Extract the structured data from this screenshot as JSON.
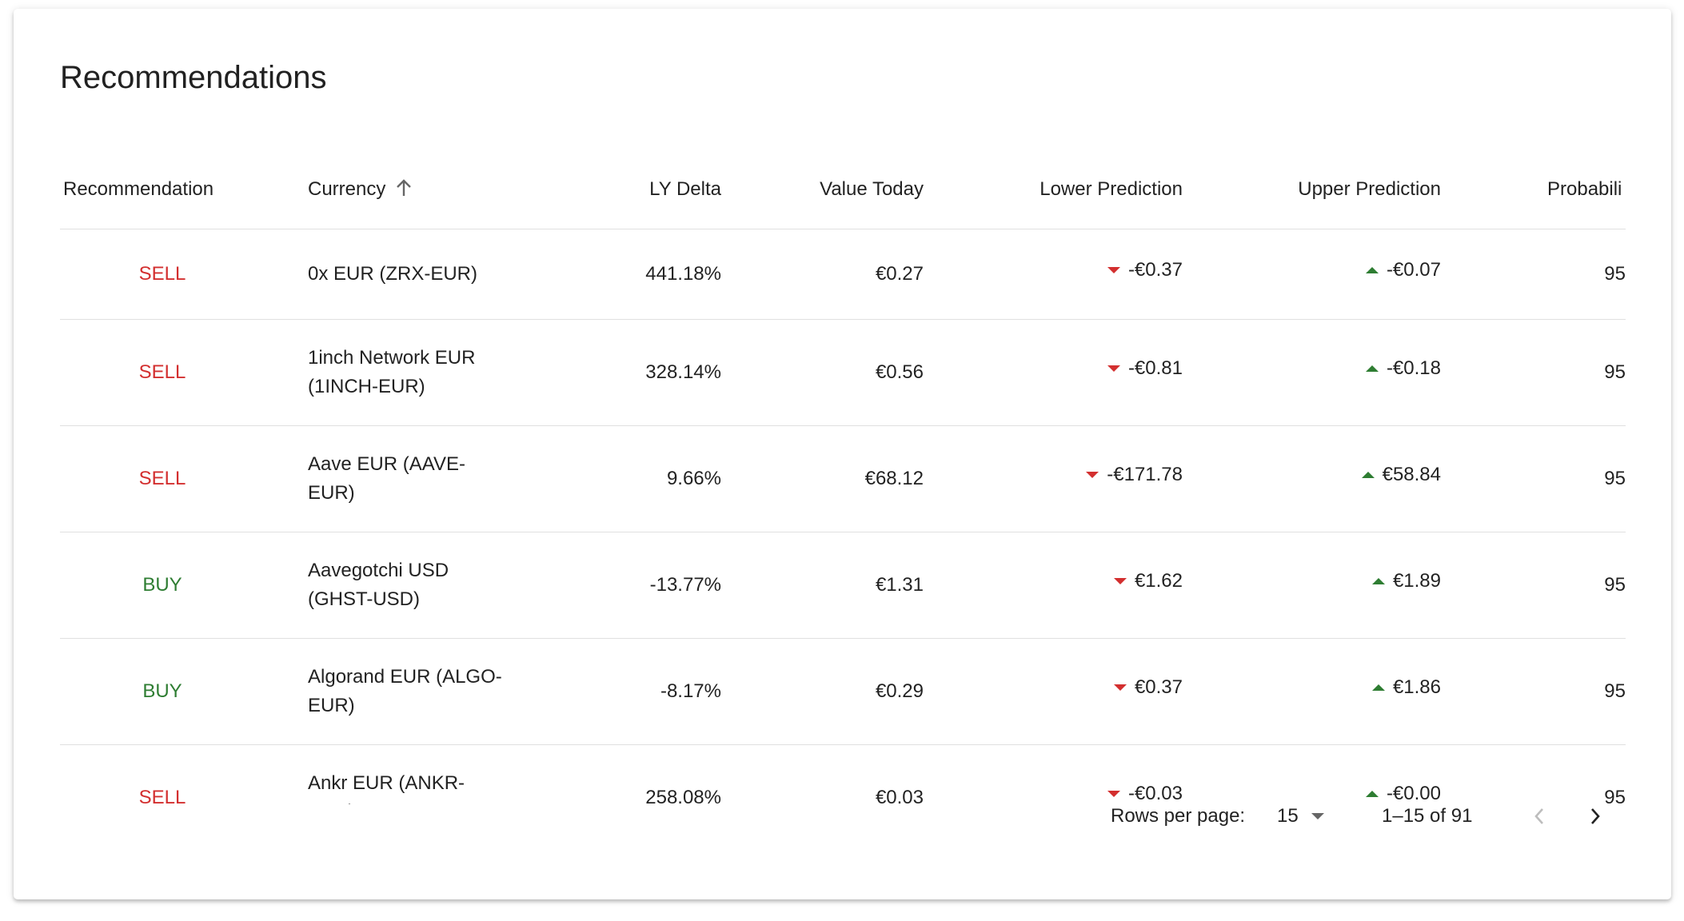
{
  "header": {
    "title": "Recommendations"
  },
  "table": {
    "columns": [
      "Recommendation",
      "Currency",
      "LY Delta",
      "Value Today",
      "Lower Prediction",
      "Upper Prediction",
      "Probabili"
    ],
    "rows": [
      {
        "recommendation": {
          "label": "SELL",
          "color": "#d32f2f"
        },
        "currency": "0x EUR (ZRX-EUR)",
        "ly_delta": "441.18%",
        "value_today": "€0.27",
        "lower_prediction": "-€0.37",
        "upper_prediction": "-€0.07",
        "probability": "95"
      },
      {
        "recommendation": {
          "label": "SELL",
          "color": "#d32f2f"
        },
        "currency": "1inch Network EUR (1INCH-EUR)",
        "ly_delta": "328.14%",
        "value_today": "€0.56",
        "lower_prediction": "-€0.81",
        "upper_prediction": "-€0.18",
        "probability": "95"
      },
      {
        "recommendation": {
          "label": "SELL",
          "color": "#d32f2f"
        },
        "currency": "Aave EUR (AAVE-EUR)",
        "ly_delta": "9.66%",
        "value_today": "€68.12",
        "lower_prediction": "-€171.78",
        "upper_prediction": "€58.84",
        "probability": "95"
      },
      {
        "recommendation": {
          "label": "BUY",
          "color": "#2e7d32"
        },
        "currency": "Aavegotchi USD (GHST-USD)",
        "ly_delta": "-13.77%",
        "value_today": "€1.31",
        "lower_prediction": "€1.62",
        "upper_prediction": "€1.89",
        "probability": "95"
      },
      {
        "recommendation": {
          "label": "BUY",
          "color": "#2e7d32"
        },
        "currency": "Algorand EUR (ALGO-EUR)",
        "ly_delta": "-8.17%",
        "value_today": "€0.29",
        "lower_prediction": "€0.37",
        "upper_prediction": "€1.86",
        "probability": "95"
      },
      {
        "recommendation": {
          "label": "SELL",
          "color": "#d32f2f"
        },
        "currency": "Ankr EUR (ANKR-EUR)",
        "ly_delta": "258.08%",
        "value_today": "€0.03",
        "lower_prediction": "-€0.03",
        "upper_prediction": "-€0.00",
        "probability": "95"
      }
    ]
  },
  "pagination": {
    "rows_per_page_label": "Rows per page:",
    "rows_per_page": "15",
    "range": "1–15 of 91"
  }
}
